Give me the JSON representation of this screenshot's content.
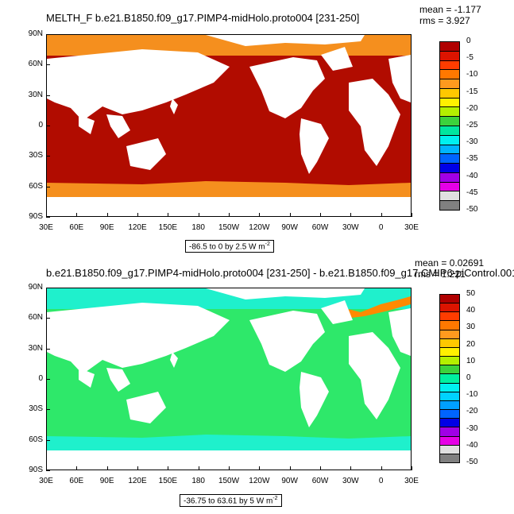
{
  "panel1": {
    "title": "MELTH_F b.e21.B1850.f09_g17.PIMP4-midHolo.proto004 [231-250]",
    "mean": "mean = -1.177",
    "rms": "rms = 3.927",
    "info": "-86.5 to 0 by 2.5  W m",
    "info_sup": "-2",
    "legend": {
      "labels": [
        "0",
        "-5",
        "-10",
        "-15",
        "-20",
        "-25",
        "-30",
        "-35",
        "-40",
        "-45",
        "-50"
      ],
      "colors": [
        "#b00000",
        "#dc1400",
        "#ff3c00",
        "#ff7800",
        "#ff9a1e",
        "#ffc800",
        "#fff000",
        "#b4f000",
        "#3cd23c",
        "#00e6a0",
        "#00f0f0",
        "#00b4ff",
        "#0064ff",
        "#0000e6",
        "#a000e6",
        "#e600e6",
        "#e0e0e0",
        "#808080"
      ]
    }
  },
  "panel2": {
    "title": "b.e21.B1850.f09_g17.PIMP4-midHolo.proto004 [231-250] - b.e21.B1850.f09_g17.CMIP6-piControl.001 [",
    "mean": "mean = 0.02691",
    "rms": "rms = 1.221",
    "info": "-36.75 to 63.61 by 5  W m",
    "info_sup": "-2",
    "legend": {
      "labels": [
        "50",
        "40",
        "30",
        "20",
        "10",
        "0",
        "-10",
        "-20",
        "-30",
        "-40",
        "-50"
      ],
      "colors": [
        "#b00000",
        "#dc1400",
        "#ff3c00",
        "#ff7800",
        "#ff9a1e",
        "#ffc800",
        "#fff000",
        "#b4f000",
        "#3cd23c",
        "#00f0a0",
        "#00f0f0",
        "#00d2ff",
        "#00a0ff",
        "#0064ff",
        "#0000e6",
        "#a000e6",
        "#e600e6",
        "#e0e0e0",
        "#808080"
      ]
    }
  },
  "axes": {
    "lat_labels": [
      "90N",
      "60N",
      "30N",
      "0",
      "30S",
      "60S",
      "90S"
    ],
    "lon_labels": [
      "30E",
      "60E",
      "90E",
      "120E",
      "150E",
      "180",
      "150W",
      "120W",
      "90W",
      "60W",
      "30W",
      "0",
      "30E"
    ]
  },
  "colors": {
    "p1_ocean": "#b10c00",
    "p1_ice": "#f58f1e",
    "p2_ocean": "#2ee86a",
    "p2_ice": "#1ff0cc"
  }
}
